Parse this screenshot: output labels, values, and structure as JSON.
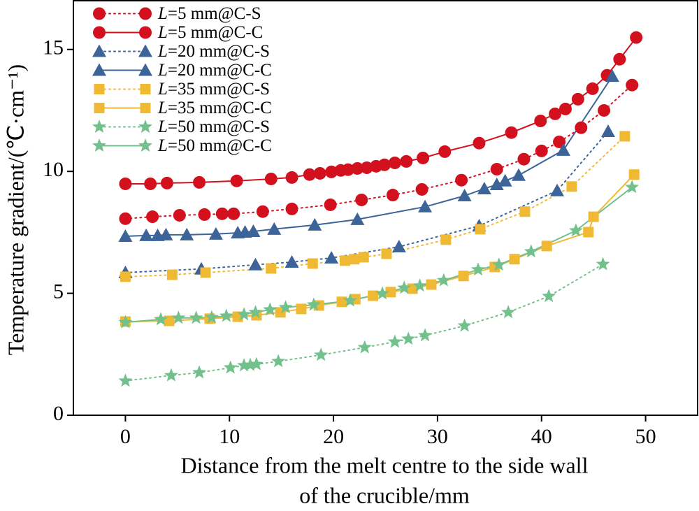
{
  "chart_data": {
    "type": "scatter",
    "xlabel": [
      "Distance from the melt centre to the side wall",
      "of the crucible/mm"
    ],
    "ylabel": "Temperature gradient/(℃·cm⁻¹)",
    "xlim": [
      -5,
      55
    ],
    "ylim": [
      0,
      17
    ],
    "xticks": [
      0,
      10,
      20,
      30,
      40,
      50
    ],
    "yticks": [
      0,
      5,
      10,
      15
    ],
    "legend": "upper left",
    "series": [
      {
        "name": "L=5 mm@C-S",
        "color": "#d3101e",
        "marker": "circle",
        "line": "dotted",
        "x": [
          0,
          2.6,
          5.2,
          7.6,
          9.3,
          10.4,
          13.2,
          16,
          19.7,
          22.7,
          25.7,
          28.5,
          32.3,
          35.7,
          38.3,
          40,
          41.7,
          43.8,
          46,
          48.7
        ],
        "values": [
          8.06,
          8.14,
          8.2,
          8.23,
          8.26,
          8.26,
          8.35,
          8.46,
          8.63,
          8.83,
          9.03,
          9.26,
          9.64,
          10.09,
          10.5,
          10.84,
          11.21,
          11.79,
          12.5,
          13.54
        ]
      },
      {
        "name": "L=5 mm@C-C",
        "color": "#d3101e",
        "marker": "circle",
        "line": "solid",
        "x": [
          0,
          2.4,
          4,
          7.1,
          10.7,
          14,
          16,
          17.7,
          18.7,
          19.8,
          20.7,
          21.4,
          22.3,
          23.2,
          24.1,
          24.9,
          25.9,
          27,
          28.6,
          30.7,
          34,
          37.1,
          39.9,
          41.3,
          42.3,
          43.5,
          44.9,
          46.3,
          47.5,
          49.1
        ],
        "values": [
          9.49,
          9.49,
          9.52,
          9.55,
          9.61,
          9.69,
          9.75,
          9.87,
          9.92,
          9.98,
          10.04,
          10.07,
          10.12,
          10.15,
          10.21,
          10.27,
          10.35,
          10.41,
          10.55,
          10.81,
          11.16,
          11.59,
          12.07,
          12.36,
          12.56,
          12.96,
          13.39,
          13.94,
          14.6,
          15.49
        ]
      },
      {
        "name": "L=20 mm@C-S",
        "color": "#3d6498",
        "marker": "triangle",
        "line": "dotted",
        "x": [
          0,
          7.3,
          12.5,
          16,
          19.8,
          26.3,
          34,
          41.5,
          46.4
        ],
        "values": [
          5.85,
          6,
          6.17,
          6.28,
          6.45,
          6.91,
          7.77,
          9.21,
          11.64
        ]
      },
      {
        "name": "L=20 mm@C-C",
        "color": "#3d6498",
        "marker": "triangle",
        "line": "solid",
        "x": [
          0,
          2,
          3.1,
          3.9,
          5.9,
          8.7,
          10.8,
          11.5,
          12.3,
          14.3,
          18.2,
          22.3,
          28.8,
          32.6,
          34.5,
          35.7,
          36.5,
          37.8,
          42.1,
          46.8
        ],
        "values": [
          7.34,
          7.37,
          7.37,
          7.4,
          7.4,
          7.43,
          7.48,
          7.51,
          7.54,
          7.63,
          7.8,
          8.03,
          8.55,
          9,
          9.29,
          9.46,
          9.61,
          9.84,
          10.87,
          13.9
        ]
      },
      {
        "name": "L=35 mm@C-S",
        "color": "#f0b933",
        "marker": "square",
        "line": "dotted",
        "x": [
          0,
          4.5,
          7.7,
          14,
          18,
          21.1,
          22,
          22.9,
          25.1,
          30.8,
          34.1,
          38.4,
          42.9,
          48
        ],
        "values": [
          5.68,
          5.76,
          5.85,
          6.02,
          6.22,
          6.34,
          6.4,
          6.48,
          6.62,
          7.2,
          7.63,
          8.35,
          9.38,
          11.44
        ]
      },
      {
        "name": "L=35 mm@C-C",
        "color": "#f0b933",
        "marker": "square",
        "line": "solid",
        "x": [
          0,
          4.2,
          8.1,
          10.8,
          12.6,
          14.9,
          16.9,
          18.6,
          20.8,
          22.1,
          23.8,
          25.5,
          27.6,
          29.4,
          32.5,
          35.5,
          37.4,
          40.5,
          44.5,
          45,
          48.9
        ],
        "values": [
          3.84,
          3.87,
          3.96,
          4.04,
          4.1,
          4.22,
          4.36,
          4.5,
          4.65,
          4.76,
          4.9,
          5.05,
          5.19,
          5.36,
          5.71,
          6.08,
          6.4,
          6.94,
          7.51,
          8.14,
          9.87
        ]
      },
      {
        "name": "L=50 mm@C-S",
        "color": "#72c08c",
        "marker": "star",
        "line": "dotted",
        "x": [
          0,
          4.4,
          7.1,
          10.1,
          11.4,
          12,
          12.6,
          14.7,
          18.8,
          23,
          25.9,
          27.2,
          28.8,
          32.6,
          36.8,
          40.7,
          45.9
        ],
        "values": [
          1.41,
          1.63,
          1.75,
          1.95,
          2.04,
          2.06,
          2.09,
          2.21,
          2.47,
          2.78,
          3.01,
          3.13,
          3.27,
          3.67,
          4.22,
          4.88,
          6.19
        ]
      },
      {
        "name": "L=50 mm@C-C",
        "color": "#72c08c",
        "marker": "star",
        "line": "solid",
        "x": [
          0,
          3.4,
          5.1,
          6.8,
          8.3,
          9.7,
          11.4,
          12.5,
          13.9,
          15.4,
          18.1,
          21.6,
          24.7,
          26.8,
          28.3,
          30.6,
          33.9,
          35.9,
          39,
          43.3,
          48.7
        ],
        "values": [
          3.81,
          3.93,
          3.99,
          3.99,
          4.01,
          4.07,
          4.13,
          4.22,
          4.33,
          4.42,
          4.53,
          4.7,
          4.99,
          5.22,
          5.31,
          5.53,
          5.97,
          6.17,
          6.71,
          7.57,
          9.35
        ]
      }
    ]
  }
}
